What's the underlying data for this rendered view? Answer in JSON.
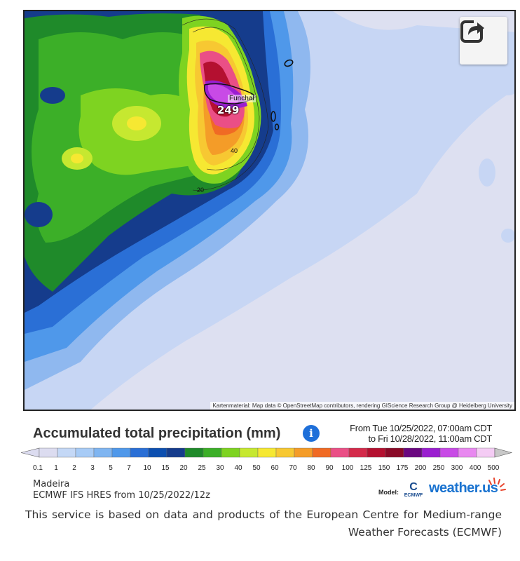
{
  "map": {
    "city": "Funchal",
    "peak_value": "249",
    "contour_labels": [
      "40",
      "20"
    ],
    "attribution": "Kartenmaterial: Map data © OpenStreetMap contributors, rendering GIScience Research Group @ Heidelberg University",
    "share_icon": "share-arrow-icon"
  },
  "header": {
    "title": "Accumulated total precipitation (mm)",
    "info_icon": "info-icon",
    "info_glyph": "i",
    "period_from": "From Tue 10/25/2022, 07:00am CDT",
    "period_to": "to Fri 10/28/2022, 11:00am CDT"
  },
  "legend": {
    "labels": [
      "0.1",
      "1",
      "2",
      "3",
      "5",
      "7",
      "10",
      "15",
      "20",
      "25",
      "30",
      "40",
      "50",
      "60",
      "70",
      "80",
      "90",
      "100",
      "125",
      "150",
      "175",
      "200",
      "250",
      "300",
      "400",
      "500"
    ],
    "colors": [
      "#dcdcf0",
      "#c4d8f6",
      "#a7cbf6",
      "#7fb5f1",
      "#4f98ea",
      "#2a6fd6",
      "#0c4fb0",
      "#153c8c",
      "#1f8a2a",
      "#3caf28",
      "#7ed321",
      "#c6e830",
      "#f6e832",
      "#f7c832",
      "#f49c28",
      "#f06a24",
      "#ea4f86",
      "#d42a4a",
      "#b41030",
      "#8a0a28",
      "#6a0880",
      "#9a1ed0",
      "#c84ae6",
      "#e888f0",
      "#f4ccf4",
      "#c8c8c8"
    ]
  },
  "footer": {
    "region": "Madeira",
    "model_run": "ECMWF IFS HRES from 10/25/2022/12z",
    "model_tag": "Model:",
    "ecmwf_mark": "C",
    "ecmwf_text": "ECMWF",
    "brand": "weather.us",
    "disclaimer": "This service is based on data and products of the European Centre for Medium-range Weather Forecasts (ECMWF)"
  }
}
